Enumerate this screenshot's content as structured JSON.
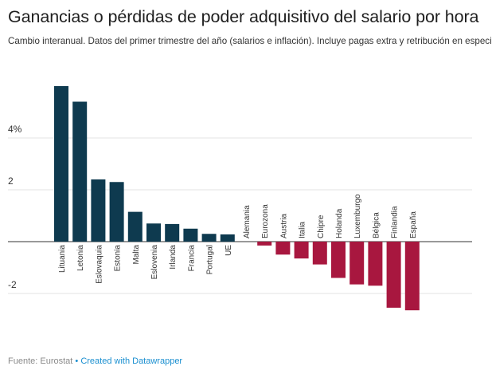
{
  "header": {
    "title": "Ganancias o pérdidas de poder adquisitivo del salario por hora",
    "subtitle": "Cambio interanual. Datos del primer trimestre del año (salarios e inflación). Incluye pagas extra y retribución en especie"
  },
  "footer": {
    "source": "Fuente: Eurostat",
    "separator": "•",
    "credit": "Created with Datawrapper"
  },
  "colors": {
    "positive": "#0e3a4f",
    "negative": "#a8173f",
    "grid": "#e3e3e3",
    "baseline": "#333333"
  },
  "chart_data": {
    "type": "bar",
    "ylim": [
      -3.0,
      6.0
    ],
    "yticks": [
      {
        "value": 4,
        "label": "4%"
      },
      {
        "value": 2,
        "label": "2"
      },
      {
        "value": -2,
        "label": "-2"
      }
    ],
    "categories": [
      "Lituania",
      "Letonia",
      "Eslovaquia",
      "Estonia",
      "Malta",
      "Eslovenia",
      "Irlanda",
      "Francia",
      "Portugal",
      "UE",
      "Alemania",
      "Eurozona",
      "Austria",
      "Italia",
      "Chipre",
      "Holanda",
      "Luxemburgo",
      "Bélgica",
      "Finlandia",
      "España"
    ],
    "values": [
      6.0,
      5.4,
      2.4,
      2.3,
      1.15,
      0.7,
      0.68,
      0.5,
      0.3,
      0.28,
      0.0,
      -0.15,
      -0.5,
      -0.65,
      -0.88,
      -1.4,
      -1.65,
      -1.7,
      -2.55,
      -2.65
    ],
    "grid": true,
    "legend": "none"
  }
}
